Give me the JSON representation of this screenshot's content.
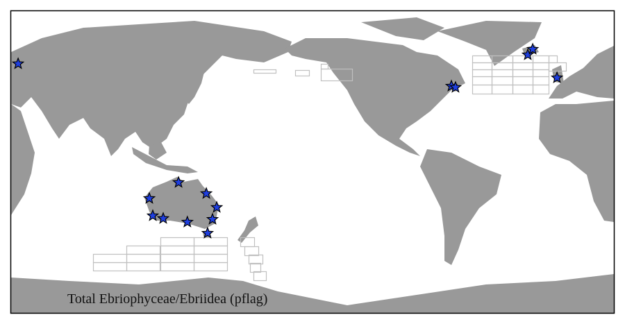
{
  "map": {
    "title": "Total Ebriophyceae/Ebriidea (pflag)",
    "projection": "Pacific-centered world map",
    "colors": {
      "land": "#999999",
      "ocean": "#ffffff",
      "grid": "#c0c0c0",
      "marker": "#1f3fe0"
    },
    "marker_icon": "star-icon",
    "markers": [
      {
        "lon": 130.6,
        "lat": -11.9
      },
      {
        "lon": 112.7,
        "lat": -21.7
      },
      {
        "lon": 147.6,
        "lat": -18.7
      },
      {
        "lon": 154.0,
        "lat": -27.2
      },
      {
        "lon": 114.8,
        "lat": -32.3
      },
      {
        "lon": 121.2,
        "lat": -34.0
      },
      {
        "lon": 136.0,
        "lat": -36.2
      },
      {
        "lon": 151.4,
        "lat": -34.5
      },
      {
        "lon": 148.4,
        "lat": -43.0
      },
      {
        "lon": -62.2,
        "lat": 47.2
      },
      {
        "lon": -59.7,
        "lat": 46.4
      },
      {
        "lon": -15.4,
        "lat": 66.4
      },
      {
        "lon": -12.4,
        "lat": 69.8
      },
      {
        "lon": 2.5,
        "lat": 52.3
      },
      {
        "lon": 32.3,
        "lat": 60.9
      }
    ]
  }
}
